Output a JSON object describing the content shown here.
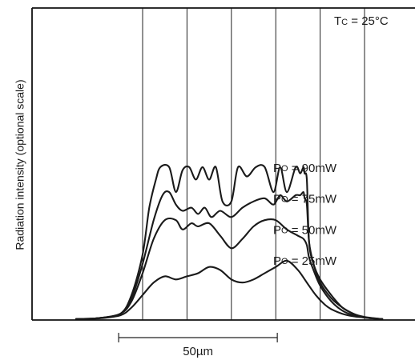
{
  "chart_data": {
    "type": "line",
    "ylabel": "Radiation intensity (optional scale)",
    "xlabel": "",
    "annotation": {
      "pre": "T",
      "sub": "C",
      "post": " = 25°C"
    },
    "scale_bar": {
      "label": "50µm",
      "length_um": 50
    },
    "xlim": [
      -38,
      118
    ],
    "ylim": [
      0,
      100
    ],
    "grid": {
      "vertical_lines_at": [
        0,
        20,
        40,
        60,
        80,
        100
      ],
      "horizontal": false
    },
    "series": [
      {
        "label_pre": "P",
        "label_sub": "O",
        "label_post": " = 90mW",
        "label_y": 48.5,
        "x": [
          -30,
          -20,
          -10,
          -5,
          0,
          3,
          6,
          8,
          12,
          15,
          18,
          21,
          24,
          27,
          30,
          33,
          36,
          40,
          43,
          47,
          51,
          55,
          59,
          62,
          65,
          69,
          71,
          72.5,
          73,
          74,
          75,
          77,
          80,
          85,
          90,
          95,
          100,
          108
        ],
        "y": [
          0.3,
          0.6,
          2,
          8,
          21,
          36,
          45,
          49,
          49,
          41,
          48,
          49,
          45,
          49,
          45,
          49,
          38,
          38,
          49,
          46,
          49,
          49,
          41,
          49,
          41,
          49,
          47,
          49,
          47,
          45,
          25,
          18,
          13,
          8,
          4,
          2,
          1,
          0.3
        ]
      },
      {
        "label_pre": "P",
        "label_sub": "O",
        "label_post": " = 75mW",
        "label_y": 38.6,
        "x": [
          -30,
          -20,
          -10,
          -5,
          0,
          5,
          9,
          12,
          15,
          18,
          22,
          25,
          28,
          31,
          35,
          40,
          45,
          50,
          55,
          59,
          62,
          65,
          69,
          71,
          72.5,
          73,
          74,
          75,
          77,
          80,
          85,
          90,
          95,
          100,
          108
        ],
        "y": [
          0.3,
          0.6,
          2,
          7,
          18,
          32,
          40,
          41,
          37,
          35,
          36,
          34,
          36,
          33,
          35,
          33,
          36,
          38,
          39,
          37,
          40,
          38,
          40,
          40,
          41,
          39,
          37,
          25,
          18,
          12,
          7,
          4,
          2,
          0.8,
          0.3
        ]
      },
      {
        "label_pre": "P",
        "label_sub": "O",
        "label_post": " = 50mW",
        "label_y": 28.6,
        "x": [
          -30,
          -20,
          -10,
          -5,
          0,
          5,
          10,
          15,
          18,
          22,
          25,
          30,
          35,
          40,
          45,
          50,
          55,
          60,
          65,
          70,
          72.5,
          74,
          75,
          77,
          80,
          85,
          90,
          95,
          100,
          108
        ],
        "y": [
          0.3,
          0.6,
          2,
          6,
          15,
          26,
          32,
          32,
          29,
          31,
          30,
          31,
          27,
          23,
          26,
          30,
          32,
          32,
          29,
          27,
          26,
          24,
          20,
          16,
          11,
          6,
          3,
          1.5,
          0.8,
          0.3
        ]
      },
      {
        "label_pre": "P",
        "label_sub": "O",
        "label_post": " = 25mW",
        "label_y": 18.7,
        "x": [
          -30,
          -20,
          -10,
          -5,
          0,
          5,
          10,
          15,
          20,
          25,
          30,
          35,
          40,
          45,
          50,
          55,
          60,
          65,
          70,
          74,
          78,
          82,
          85,
          90,
          95,
          100,
          105,
          108
        ],
        "y": [
          0.3,
          0.5,
          1.5,
          4,
          8,
          12,
          14,
          13,
          14,
          15,
          17,
          16,
          13,
          12,
          13,
          15,
          17,
          19,
          16,
          12,
          8,
          5,
          3.5,
          2,
          1.2,
          0.8,
          0.4,
          0.3
        ]
      }
    ]
  }
}
